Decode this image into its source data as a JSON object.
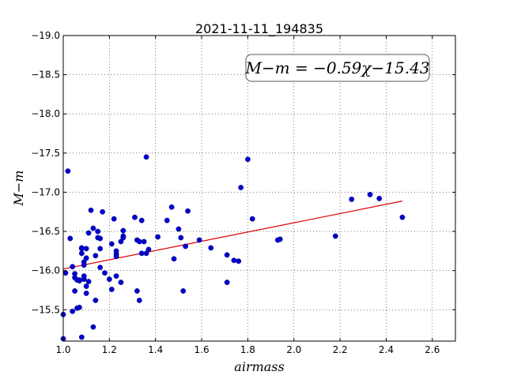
{
  "chart_data": {
    "type": "scatter",
    "title": "2021-11-11_194835",
    "xlabel": "airmass",
    "ylabel": "M−m",
    "annotation": "M−m = −0.59χ−15.43",
    "xlim": [
      1.0,
      2.7
    ],
    "ylim": [
      -19.0,
      -15.1
    ],
    "y_inverted": true,
    "grid": true,
    "xticks": [
      "1.0",
      "1.2",
      "1.4",
      "1.6",
      "1.8",
      "2.0",
      "2.2",
      "2.4",
      "2.6"
    ],
    "yticks": [
      "−15.5",
      "−16.0",
      "−16.5",
      "−17.0",
      "−17.5",
      "−18.0",
      "−18.5",
      "−19.0"
    ],
    "colors": {
      "points": "#0000cc",
      "fit_line": "#dd0000"
    },
    "fit": {
      "slope": -0.59,
      "intercept": -15.43,
      "x_range": [
        1.0,
        2.47
      ]
    },
    "points": [
      [
        1.0,
        -15.13
      ],
      [
        1.0,
        -15.44
      ],
      [
        1.01,
        -15.97
      ],
      [
        1.02,
        -17.27
      ],
      [
        1.03,
        -16.41
      ],
      [
        1.04,
        -15.48
      ],
      [
        1.04,
        -16.05
      ],
      [
        1.05,
        -15.74
      ],
      [
        1.05,
        -15.96
      ],
      [
        1.05,
        -15.91
      ],
      [
        1.06,
        -15.52
      ],
      [
        1.06,
        -15.88
      ],
      [
        1.07,
        -15.53
      ],
      [
        1.07,
        -15.87
      ],
      [
        1.07,
        -15.88
      ],
      [
        1.08,
        -15.15
      ],
      [
        1.08,
        -16.22
      ],
      [
        1.08,
        -16.28
      ],
      [
        1.08,
        -16.29
      ],
      [
        1.09,
        -15.93
      ],
      [
        1.09,
        -16.11
      ],
      [
        1.09,
        -15.89
      ],
      [
        1.09,
        -16.07
      ],
      [
        1.1,
        -16.28
      ],
      [
        1.1,
        -16.16
      ],
      [
        1.1,
        -15.71
      ],
      [
        1.1,
        -15.8
      ],
      [
        1.11,
        -16.48
      ],
      [
        1.11,
        -15.86
      ],
      [
        1.12,
        -16.77
      ],
      [
        1.13,
        -15.28
      ],
      [
        1.13,
        -16.54
      ],
      [
        1.14,
        -15.62
      ],
      [
        1.14,
        -16.19
      ],
      [
        1.15,
        -16.42
      ],
      [
        1.15,
        -16.5
      ],
      [
        1.16,
        -16.41
      ],
      [
        1.16,
        -16.04
      ],
      [
        1.16,
        -16.28
      ],
      [
        1.17,
        -16.75
      ],
      [
        1.18,
        -15.97
      ],
      [
        1.2,
        -15.89
      ],
      [
        1.21,
        -16.34
      ],
      [
        1.21,
        -15.76
      ],
      [
        1.22,
        -16.66
      ],
      [
        1.23,
        -16.21
      ],
      [
        1.23,
        -16.25
      ],
      [
        1.23,
        -15.93
      ],
      [
        1.23,
        -16.18
      ],
      [
        1.25,
        -15.85
      ],
      [
        1.25,
        -16.37
      ],
      [
        1.26,
        -16.44
      ],
      [
        1.26,
        -16.51
      ],
      [
        1.26,
        -16.42
      ],
      [
        1.31,
        -16.68
      ],
      [
        1.32,
        -15.74
      ],
      [
        1.32,
        -16.39
      ],
      [
        1.33,
        -15.62
      ],
      [
        1.33,
        -16.37
      ],
      [
        1.34,
        -16.64
      ],
      [
        1.34,
        -16.22
      ],
      [
        1.35,
        -16.37
      ],
      [
        1.36,
        -17.45
      ],
      [
        1.36,
        -16.22
      ],
      [
        1.37,
        -16.27
      ],
      [
        1.41,
        -16.43
      ],
      [
        1.45,
        -16.64
      ],
      [
        1.47,
        -16.81
      ],
      [
        1.48,
        -16.15
      ],
      [
        1.5,
        -16.53
      ],
      [
        1.51,
        -16.42
      ],
      [
        1.52,
        -15.74
      ],
      [
        1.53,
        -16.31
      ],
      [
        1.54,
        -16.76
      ],
      [
        1.59,
        -16.39
      ],
      [
        1.64,
        -16.29
      ],
      [
        1.71,
        -16.2
      ],
      [
        1.71,
        -15.85
      ],
      [
        1.74,
        -16.13
      ],
      [
        1.76,
        -16.12
      ],
      [
        1.77,
        -17.06
      ],
      [
        1.8,
        -17.42
      ],
      [
        1.82,
        -16.66
      ],
      [
        1.93,
        -16.39
      ],
      [
        1.94,
        -16.4
      ],
      [
        2.18,
        -16.44
      ],
      [
        2.25,
        -16.91
      ],
      [
        2.33,
        -16.97
      ],
      [
        2.37,
        -16.92
      ],
      [
        2.47,
        -16.68
      ]
    ]
  }
}
